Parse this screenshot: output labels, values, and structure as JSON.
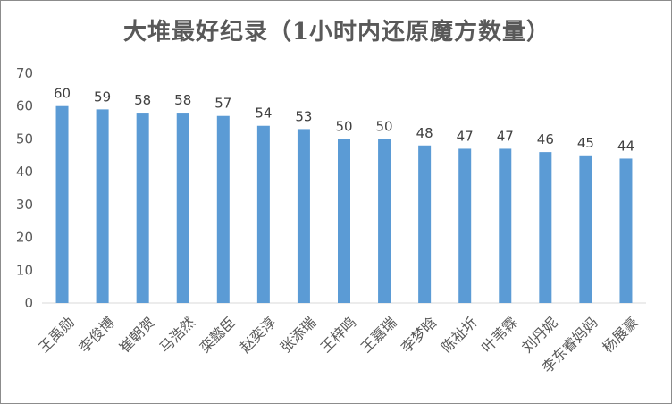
{
  "chart_data": {
    "type": "bar",
    "title": "大堆最好纪录（1小时内还原魔方数量）",
    "xlabel": "",
    "ylabel": "",
    "ylim": [
      0,
      70
    ],
    "yticks": [
      0,
      10,
      20,
      30,
      40,
      50,
      60,
      70
    ],
    "grid": false,
    "legend": "none",
    "bar_color": "#5b9bd5",
    "categories": [
      "王禹勋",
      "李俊博",
      "崔朝贺",
      "马浩然",
      "栾懿臣",
      "赵奕淳",
      "张添瑞",
      "王梓鸣",
      "王嘉瑞",
      "李梦晗",
      "陈祉圻",
      "叶苇霖",
      "刘丹妮",
      "李东睿妈妈",
      "杨展豪"
    ],
    "values": [
      60,
      59,
      58,
      58,
      57,
      54,
      53,
      50,
      50,
      48,
      47,
      47,
      46,
      45,
      44
    ]
  }
}
